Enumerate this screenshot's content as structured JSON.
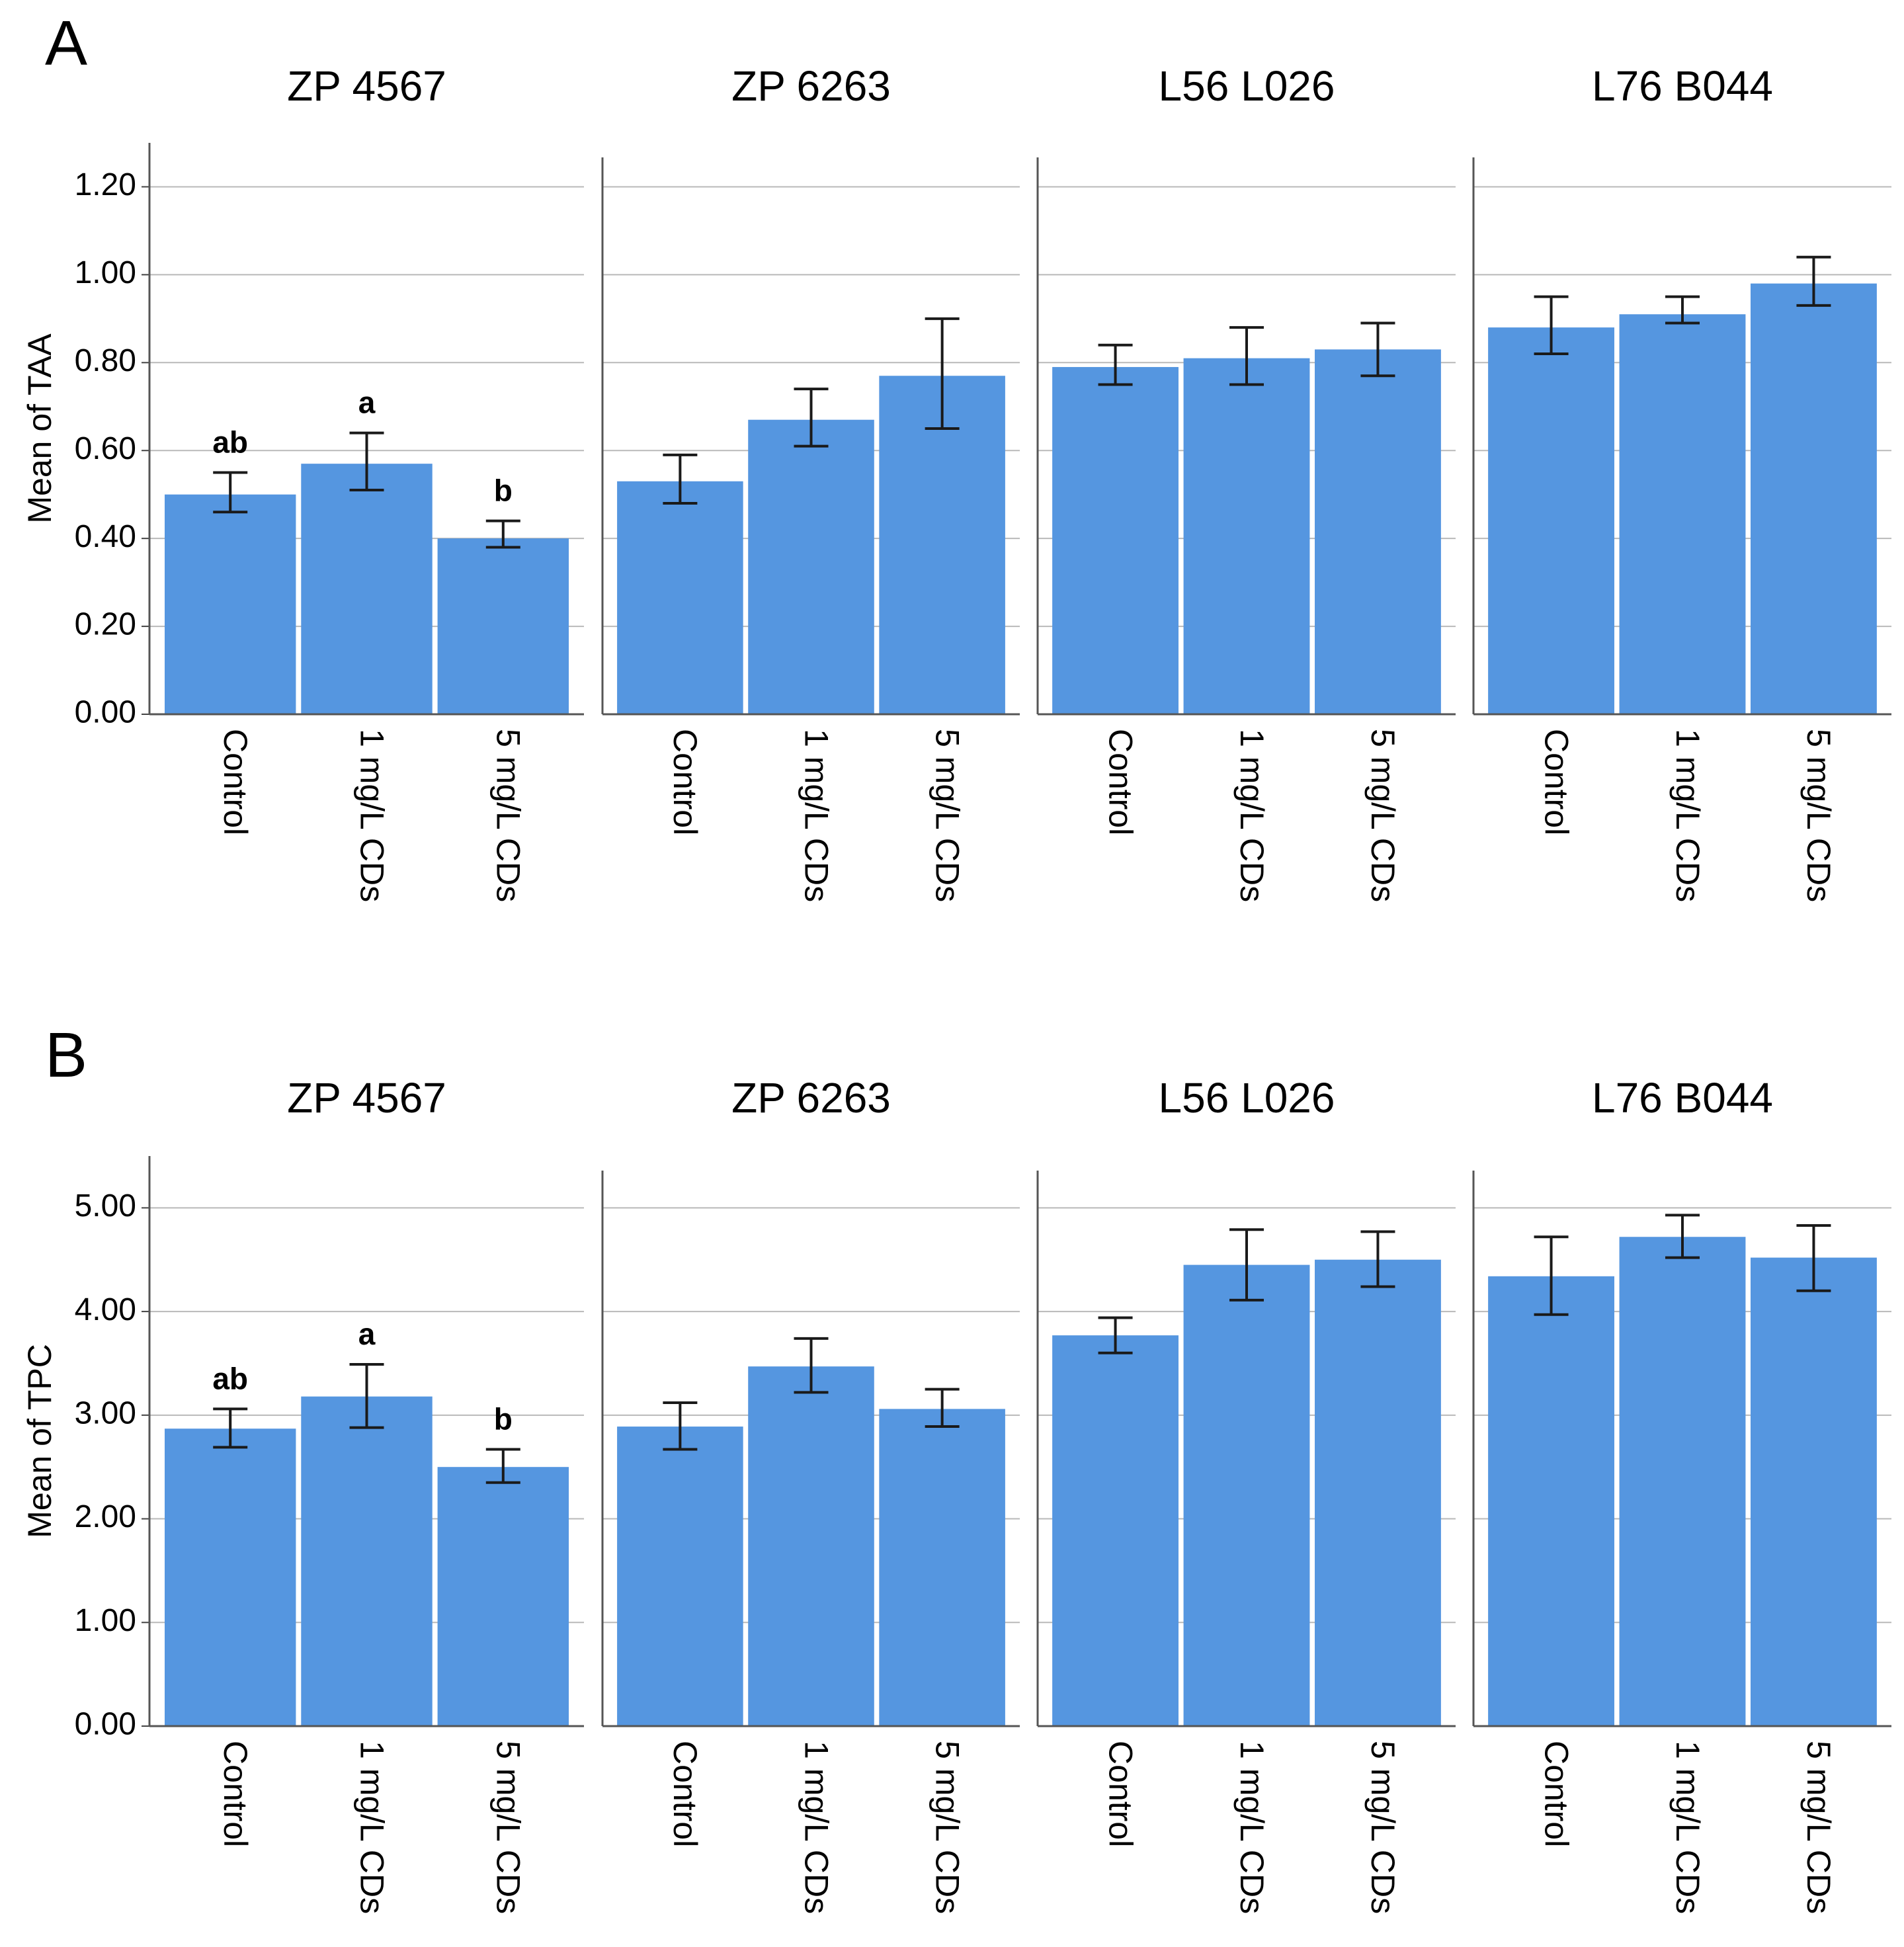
{
  "chart_data": [
    {
      "type": "bar",
      "panel_label": "A",
      "ylabel": "Mean of TAA",
      "ylim": [
        0,
        1.3
      ],
      "yticks": [
        0.0,
        0.2,
        0.4,
        0.6,
        0.8,
        1.0,
        1.2
      ],
      "ytick_labels": [
        "0.00",
        "0.20",
        "0.40",
        "0.60",
        "0.80",
        "1.00",
        "1.20"
      ],
      "grid": true,
      "bar_color": "#5596e0",
      "categories": [
        "Control",
        "1 mg/L CDs",
        "5 mg/L CDs"
      ],
      "facets": [
        {
          "title": "ZP 4567",
          "values": [
            0.5,
            0.57,
            0.4
          ],
          "err_low": [
            0.46,
            0.51,
            0.38
          ],
          "err_high": [
            0.55,
            0.64,
            0.44
          ],
          "letters": [
            "ab",
            "a",
            "b"
          ]
        },
        {
          "title": "ZP 6263",
          "values": [
            0.53,
            0.67,
            0.77
          ],
          "err_low": [
            0.48,
            0.61,
            0.65
          ],
          "err_high": [
            0.59,
            0.74,
            0.9
          ],
          "letters": [
            "",
            "",
            ""
          ]
        },
        {
          "title": "L56 L026",
          "values": [
            0.79,
            0.81,
            0.83
          ],
          "err_low": [
            0.75,
            0.75,
            0.77
          ],
          "err_high": [
            0.84,
            0.88,
            0.89
          ],
          "letters": [
            "",
            "",
            ""
          ]
        },
        {
          "title": "L76 B044",
          "values": [
            0.88,
            0.91,
            0.98
          ],
          "err_low": [
            0.82,
            0.89,
            0.93
          ],
          "err_high": [
            0.95,
            0.95,
            1.04
          ],
          "letters": [
            "",
            "",
            ""
          ]
        }
      ]
    },
    {
      "type": "bar",
      "panel_label": "B",
      "ylabel": "Mean of  TPC",
      "ylim": [
        0,
        5.5
      ],
      "yticks": [
        0,
        1,
        2,
        3,
        4,
        5
      ],
      "ytick_labels": [
        "0.00",
        "1.00",
        "2.00",
        "3.00",
        "4.00",
        "5.00"
      ],
      "grid": true,
      "bar_color": "#5596e0",
      "categories": [
        "Control",
        "1 mg/L CDs",
        "5 mg/L CDs"
      ],
      "facets": [
        {
          "title": "ZP 4567",
          "values": [
            2.87,
            3.18,
            2.5
          ],
          "err_low": [
            2.69,
            2.88,
            2.35
          ],
          "err_high": [
            3.06,
            3.49,
            2.67
          ],
          "letters": [
            "ab",
            "a",
            "b"
          ]
        },
        {
          "title": "ZP 6263",
          "values": [
            2.89,
            3.47,
            3.06
          ],
          "err_low": [
            2.67,
            3.22,
            2.89
          ],
          "err_high": [
            3.12,
            3.74,
            3.25
          ],
          "letters": [
            "",
            "",
            ""
          ]
        },
        {
          "title": "L56 L026",
          "values": [
            3.77,
            4.45,
            4.5
          ],
          "err_low": [
            3.6,
            4.11,
            4.24
          ],
          "err_high": [
            3.94,
            4.79,
            4.77
          ],
          "letters": [
            "",
            "",
            ""
          ]
        },
        {
          "title": "L76 B044",
          "values": [
            4.34,
            4.72,
            4.52
          ],
          "err_low": [
            3.97,
            4.52,
            4.2
          ],
          "err_high": [
            4.72,
            4.93,
            4.83
          ],
          "letters": [
            "",
            "",
            ""
          ]
        }
      ]
    }
  ]
}
